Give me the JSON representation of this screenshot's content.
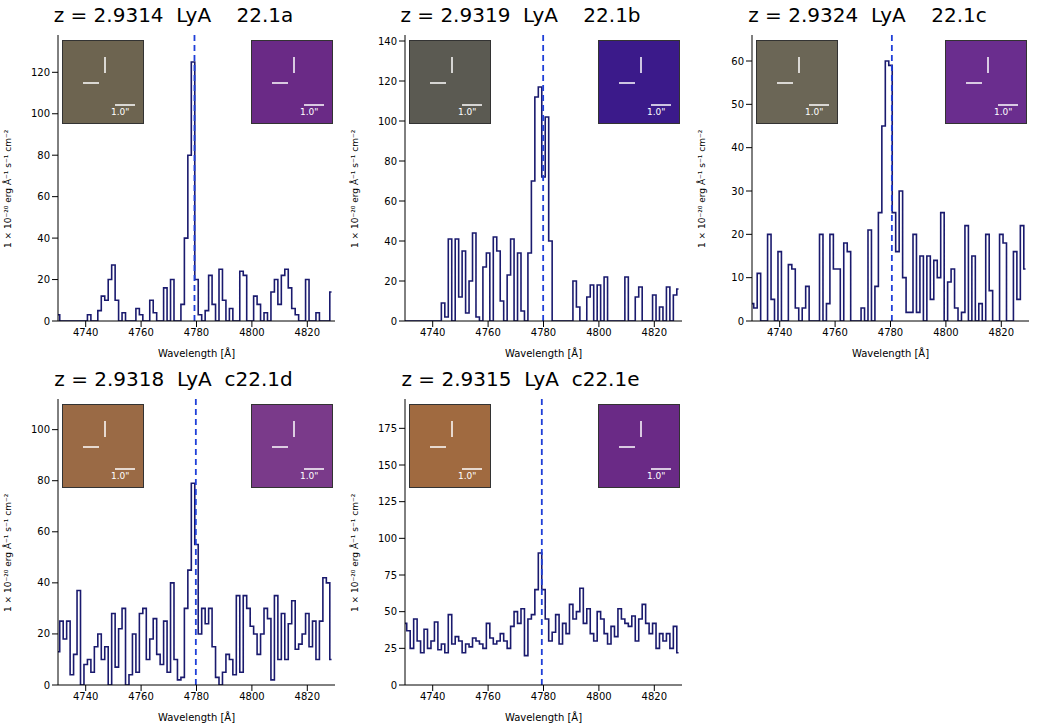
{
  "chart_data": [
    {
      "type": "line",
      "title": "z = 2.9314  LyA    22.1a",
      "x_label": "Wavelength [Å]",
      "y_label": "1 × 10⁻²⁰ erg Å⁻¹ s⁻¹ cm⁻²",
      "color": "#1a1a6e",
      "line_style": "steps",
      "vline_x": 4779.27,
      "inset_scale_label": "1.0\"",
      "xlim": [
        4730,
        4830
      ],
      "xticks": [
        4740,
        4760,
        4780,
        4800,
        4820
      ],
      "ylim": [
        0,
        138
      ],
      "yticks": [
        0,
        20,
        40,
        60,
        80,
        100,
        120
      ],
      "x": [
        4730,
        4731.25,
        4732.5,
        4733.75,
        4735,
        4736.25,
        4737.5,
        4738.75,
        4740,
        4741.25,
        4742.5,
        4743.75,
        4745,
        4746.25,
        4747.5,
        4748.75,
        4750,
        4751.25,
        4752.5,
        4753.75,
        4755,
        4756.25,
        4757.5,
        4758.75,
        4760,
        4761.25,
        4762.5,
        4763.75,
        4765,
        4766.25,
        4767.5,
        4768.75,
        4770,
        4771.25,
        4772.5,
        4773.75,
        4775,
        4776.25,
        4777.5,
        4778.75,
        4780,
        4781.25,
        4782.5,
        4783.75,
        4785,
        4786.25,
        4787.5,
        4788.75,
        4790,
        4791.25,
        4792.5,
        4793.75,
        4795,
        4796.25,
        4797.5,
        4798.75,
        4800,
        4801.25,
        4802.5,
        4803.75,
        4805,
        4806.25,
        4807.5,
        4808.75,
        4810,
        4811.25,
        4812.5,
        4813.75,
        4815,
        4816.25,
        4817.5,
        4818.75,
        4820,
        4821.25,
        4822.5,
        4823.75,
        4825,
        4826.25,
        4827.5,
        4828.75
      ],
      "values": [
        3,
        0,
        0,
        0,
        0,
        0,
        0,
        0,
        0,
        3,
        0,
        0,
        5,
        12,
        10,
        20,
        27,
        10,
        0,
        4,
        0,
        0,
        0,
        6,
        3,
        0,
        0,
        10,
        4,
        0,
        0,
        16,
        0,
        20,
        0,
        0,
        8,
        40,
        80,
        125,
        20,
        3,
        0,
        5,
        22,
        8,
        0,
        25,
        10,
        0,
        6,
        0,
        0,
        24,
        22,
        0,
        0,
        12,
        8,
        0,
        4,
        0,
        14,
        20,
        8,
        22,
        25,
        16,
        6,
        3,
        0,
        0,
        20,
        0,
        0,
        4,
        0,
        0,
        0,
        14
      ]
    },
    {
      "type": "line",
      "title": "z = 2.9319  LyA    22.1b",
      "x_label": "Wavelength [Å]",
      "y_label": "1 × 10⁻²⁰ erg Å⁻¹ s⁻¹ cm⁻²",
      "color": "#1a1a6e",
      "line_style": "steps",
      "vline_x": 4779.88,
      "inset_scale_label": "1.0\"",
      "xlim": [
        4730,
        4830
      ],
      "xticks": [
        4740,
        4760,
        4780,
        4800,
        4820
      ],
      "ylim": [
        0,
        143
      ],
      "yticks": [
        0,
        20,
        40,
        60,
        80,
        100,
        120,
        140
      ],
      "x": [
        4730,
        4731.25,
        4732.5,
        4733.75,
        4735,
        4736.25,
        4737.5,
        4738.75,
        4740,
        4741.25,
        4742.5,
        4743.75,
        4745,
        4746.25,
        4747.5,
        4748.75,
        4750,
        4751.25,
        4752.5,
        4753.75,
        4755,
        4756.25,
        4757.5,
        4758.75,
        4760,
        4761.25,
        4762.5,
        4763.75,
        4765,
        4766.25,
        4767.5,
        4768.75,
        4770,
        4771.25,
        4772.5,
        4773.75,
        4775,
        4776.25,
        4777.5,
        4778.75,
        4780,
        4781.25,
        4782.5,
        4783.75,
        4785,
        4786.25,
        4787.5,
        4788.75,
        4790,
        4791.25,
        4792.5,
        4793.75,
        4795,
        4796.25,
        4797.5,
        4798.75,
        4800,
        4801.25,
        4802.5,
        4803.75,
        4805,
        4806.25,
        4807.5,
        4808.75,
        4810,
        4811.25,
        4812.5,
        4813.75,
        4815,
        4816.25,
        4817.5,
        4818.75,
        4820,
        4821.25,
        4822.5,
        4823.75,
        4825,
        4826.25,
        4827.5,
        4828.75
      ],
      "values": [
        0,
        0,
        0,
        0,
        0,
        0,
        0,
        0,
        0,
        0,
        0,
        9,
        2,
        41,
        0,
        41,
        12,
        35,
        4,
        20,
        44,
        2,
        0,
        27,
        34,
        0,
        42,
        35,
        10,
        0,
        23,
        41,
        0,
        34,
        5,
        0,
        34,
        70,
        112,
        117,
        72,
        102,
        40,
        0,
        0,
        0,
        0,
        0,
        0,
        20,
        7,
        0,
        0,
        12,
        18,
        0,
        18,
        0,
        22,
        0,
        0,
        0,
        0,
        0,
        22,
        0,
        0,
        12,
        17,
        0,
        0,
        0,
        13,
        0,
        7,
        0,
        17,
        0,
        13,
        16
      ]
    },
    {
      "type": "line",
      "title": "z = 2.9324  LyA    22.1c",
      "x_label": "Wavelength [Å]",
      "y_label": "1 × 10⁻²⁰ erg Å⁻¹ s⁻¹ cm⁻²",
      "color": "#1a1a6e",
      "line_style": "steps",
      "vline_x": 4780.49,
      "inset_scale_label": "1.0\"",
      "xlim": [
        4730,
        4830
      ],
      "xticks": [
        4740,
        4760,
        4780,
        4800,
        4820
      ],
      "ylim": [
        0,
        66
      ],
      "yticks": [
        0,
        10,
        20,
        30,
        40,
        50,
        60
      ],
      "x": [
        4730,
        4731.25,
        4732.5,
        4733.75,
        4735,
        4736.25,
        4737.5,
        4738.75,
        4740,
        4741.25,
        4742.5,
        4743.75,
        4745,
        4746.25,
        4747.5,
        4748.75,
        4750,
        4751.25,
        4752.5,
        4753.75,
        4755,
        4756.25,
        4757.5,
        4758.75,
        4760,
        4761.25,
        4762.5,
        4763.75,
        4765,
        4766.25,
        4767.5,
        4768.75,
        4770,
        4771.25,
        4772.5,
        4773.75,
        4775,
        4776.25,
        4777.5,
        4778.75,
        4780,
        4781.25,
        4782.5,
        4783.75,
        4785,
        4786.25,
        4787.5,
        4788.75,
        4790,
        4791.25,
        4792.5,
        4793.75,
        4795,
        4796.25,
        4797.5,
        4798.75,
        4800,
        4801.25,
        4802.5,
        4803.75,
        4805,
        4806.25,
        4807.5,
        4808.75,
        4810,
        4811.25,
        4812.5,
        4813.75,
        4815,
        4816.25,
        4817.5,
        4818.75,
        4820,
        4821.25,
        4822.5,
        4823.75,
        4825,
        4826.25,
        4827.5,
        4828.75
      ],
      "values": [
        4,
        3,
        11,
        0,
        0,
        20,
        5,
        0,
        16,
        0,
        0,
        13,
        12,
        3,
        0,
        3,
        8,
        0,
        0,
        0,
        20,
        0,
        4,
        20,
        12,
        12,
        0,
        18,
        16,
        0,
        0,
        0,
        3,
        0,
        21,
        0,
        8,
        25,
        45,
        60,
        59,
        25,
        16,
        30,
        10,
        2,
        2,
        20,
        2,
        15,
        0,
        15,
        5,
        14,
        10,
        25,
        0,
        9,
        12,
        3,
        0,
        2,
        22,
        0,
        15,
        0,
        4,
        0,
        20,
        7,
        0,
        0,
        20,
        18,
        0,
        0,
        16,
        5,
        22,
        12
      ]
    },
    {
      "type": "line",
      "title": "z = 2.9318  LyA  c22.1d",
      "x_label": "Wavelength [Å]",
      "y_label": "1 × 10⁻²⁰ erg Å⁻¹ s⁻¹ cm⁻²",
      "color": "#1a1a6e",
      "line_style": "steps",
      "vline_x": 4779.76,
      "inset_scale_label": "1.0\"",
      "xlim": [
        4730,
        4830
      ],
      "xticks": [
        4740,
        4760,
        4780,
        4800,
        4820
      ],
      "ylim": [
        0,
        112
      ],
      "yticks": [
        0,
        20,
        40,
        60,
        80,
        100
      ],
      "x": [
        4730,
        4731.25,
        4732.5,
        4733.75,
        4735,
        4736.25,
        4737.5,
        4738.75,
        4740,
        4741.25,
        4742.5,
        4743.75,
        4745,
        4746.25,
        4747.5,
        4748.75,
        4750,
        4751.25,
        4752.5,
        4753.75,
        4755,
        4756.25,
        4757.5,
        4758.75,
        4760,
        4761.25,
        4762.5,
        4763.75,
        4765,
        4766.25,
        4767.5,
        4768.75,
        4770,
        4771.25,
        4772.5,
        4773.75,
        4775,
        4776.25,
        4777.5,
        4778.75,
        4780,
        4781.25,
        4782.5,
        4783.75,
        4785,
        4786.25,
        4787.5,
        4788.75,
        4790,
        4791.25,
        4792.5,
        4793.75,
        4795,
        4796.25,
        4797.5,
        4798.75,
        4800,
        4801.25,
        4802.5,
        4803.75,
        4805,
        4806.25,
        4807.5,
        4808.75,
        4810,
        4811.25,
        4812.5,
        4813.75,
        4815,
        4816.25,
        4817.5,
        4818.75,
        4820,
        4821.25,
        4822.5,
        4823.75,
        4825,
        4826.25,
        4827.5,
        4828.75
      ],
      "values": [
        13,
        25,
        18,
        25,
        4,
        12,
        37,
        0,
        8,
        10,
        5,
        15,
        20,
        10,
        15,
        0,
        28,
        7,
        22,
        30,
        0,
        4,
        20,
        5,
        28,
        30,
        10,
        18,
        26,
        12,
        8,
        25,
        5,
        40,
        10,
        2,
        3,
        30,
        45,
        79,
        55,
        20,
        30,
        24,
        30,
        15,
        3,
        0,
        5,
        12,
        10,
        4,
        35,
        5,
        35,
        30,
        23,
        20,
        12,
        20,
        30,
        26,
        2,
        35,
        10,
        28,
        10,
        24,
        33,
        14,
        16,
        20,
        28,
        15,
        25,
        10,
        25,
        42,
        40,
        10
      ]
    },
    {
      "type": "line",
      "title": "z = 2.9315  LyA  c22.1e",
      "x_label": "Wavelength [Å]",
      "y_label": "1 × 10⁻²⁰ erg Å⁻¹ s⁻¹ cm⁻²",
      "color": "#1a1a6e",
      "line_style": "steps",
      "vline_x": 4779.39,
      "inset_scale_label": "1.0\"",
      "xlim": [
        4730,
        4830
      ],
      "xticks": [
        4740,
        4760,
        4780,
        4800,
        4820
      ],
      "ylim": [
        0,
        195
      ],
      "yticks": [
        0,
        25,
        50,
        75,
        100,
        125,
        150,
        175
      ],
      "x": [
        4730,
        4731.25,
        4732.5,
        4733.75,
        4735,
        4736.25,
        4737.5,
        4738.75,
        4740,
        4741.25,
        4742.5,
        4743.75,
        4745,
        4746.25,
        4747.5,
        4748.75,
        4750,
        4751.25,
        4752.5,
        4753.75,
        4755,
        4756.25,
        4757.5,
        4758.75,
        4760,
        4761.25,
        4762.5,
        4763.75,
        4765,
        4766.25,
        4767.5,
        4768.75,
        4770,
        4771.25,
        4772.5,
        4773.75,
        4775,
        4776.25,
        4777.5,
        4778.75,
        4780,
        4781.25,
        4782.5,
        4783.75,
        4785,
        4786.25,
        4787.5,
        4788.75,
        4790,
        4791.25,
        4792.5,
        4793.75,
        4795,
        4796.25,
        4797.5,
        4798.75,
        4800,
        4801.25,
        4802.5,
        4803.75,
        4805,
        4806.25,
        4807.5,
        4808.75,
        4810,
        4811.25,
        4812.5,
        4813.75,
        4815,
        4816.25,
        4817.5,
        4818.75,
        4820,
        4821.25,
        4822.5,
        4823.75,
        4825,
        4826.25,
        4827.5,
        4828.75
      ],
      "values": [
        42,
        37,
        25,
        45,
        30,
        22,
        38,
        25,
        30,
        43,
        24,
        28,
        22,
        48,
        28,
        33,
        30,
        22,
        28,
        26,
        32,
        30,
        28,
        25,
        42,
        32,
        28,
        30,
        35,
        30,
        25,
        40,
        50,
        42,
        52,
        20,
        45,
        48,
        65,
        90,
        65,
        45,
        30,
        36,
        48,
        28,
        42,
        35,
        55,
        45,
        50,
        66,
        42,
        52,
        35,
        30,
        50,
        45,
        35,
        28,
        40,
        33,
        52,
        45,
        42,
        40,
        47,
        30,
        45,
        55,
        42,
        35,
        42,
        25,
        35,
        30,
        35,
        25,
        40,
        22
      ]
    }
  ]
}
